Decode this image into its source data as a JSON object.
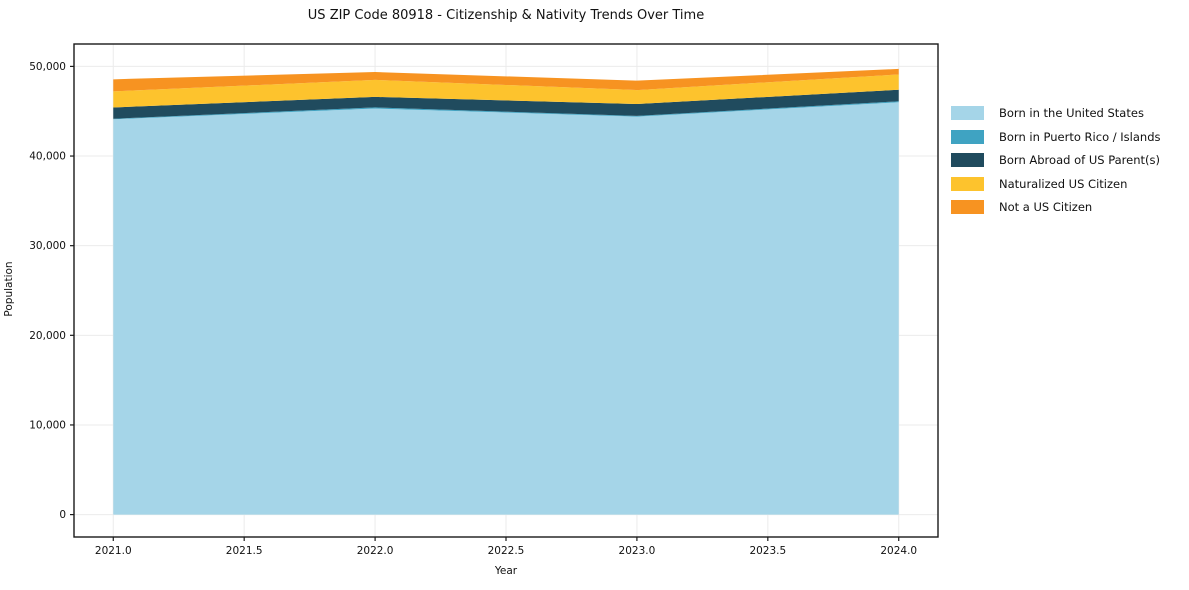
{
  "chart_data": {
    "type": "area",
    "stacked": true,
    "title": "US ZIP Code 80918 - Citizenship & Nativity Trends Over Time",
    "xlabel": "Year",
    "ylabel": "Population",
    "x": [
      2021,
      2022,
      2023,
      2024
    ],
    "series": [
      {
        "name": "Born in the United States",
        "color": "#A5D5E8",
        "values": [
          44100,
          45300,
          44400,
          46000
        ]
      },
      {
        "name": "Born in Puerto Rico / Islands",
        "color": "#3FA3C2",
        "values": [
          60,
          130,
          80,
          110
        ]
      },
      {
        "name": "Born Abroad of US Parent(s)",
        "color": "#204B5E",
        "values": [
          1260,
          1170,
          1320,
          1290
        ]
      },
      {
        "name": "Naturalized US Citizen",
        "color": "#FDC32D",
        "values": [
          1790,
          1900,
          1560,
          1700
        ]
      },
      {
        "name": "Not a US Citizen",
        "color": "#F79321",
        "values": [
          1350,
          870,
          1050,
          620
        ]
      }
    ],
    "xticks": {
      "values": [
        2021.0,
        2021.5,
        2022.0,
        2022.5,
        2023.0,
        2023.5,
        2024.0
      ],
      "labels": [
        "2021.0",
        "2021.5",
        "2022.0",
        "2022.5",
        "2023.0",
        "2023.5",
        "2024.0"
      ]
    },
    "yticks": {
      "values": [
        0,
        10000,
        20000,
        30000,
        40000,
        50000
      ],
      "labels": [
        "0",
        "10,000",
        "20,000",
        "30,000",
        "40,000",
        "50,000"
      ]
    },
    "xlim": [
      2020.85,
      2024.15
    ],
    "ylim": [
      -2500,
      52500
    ],
    "grid": true,
    "grid_color": "#ebebeb",
    "axis_color": "#1a1a1a",
    "legend_position": "right"
  }
}
